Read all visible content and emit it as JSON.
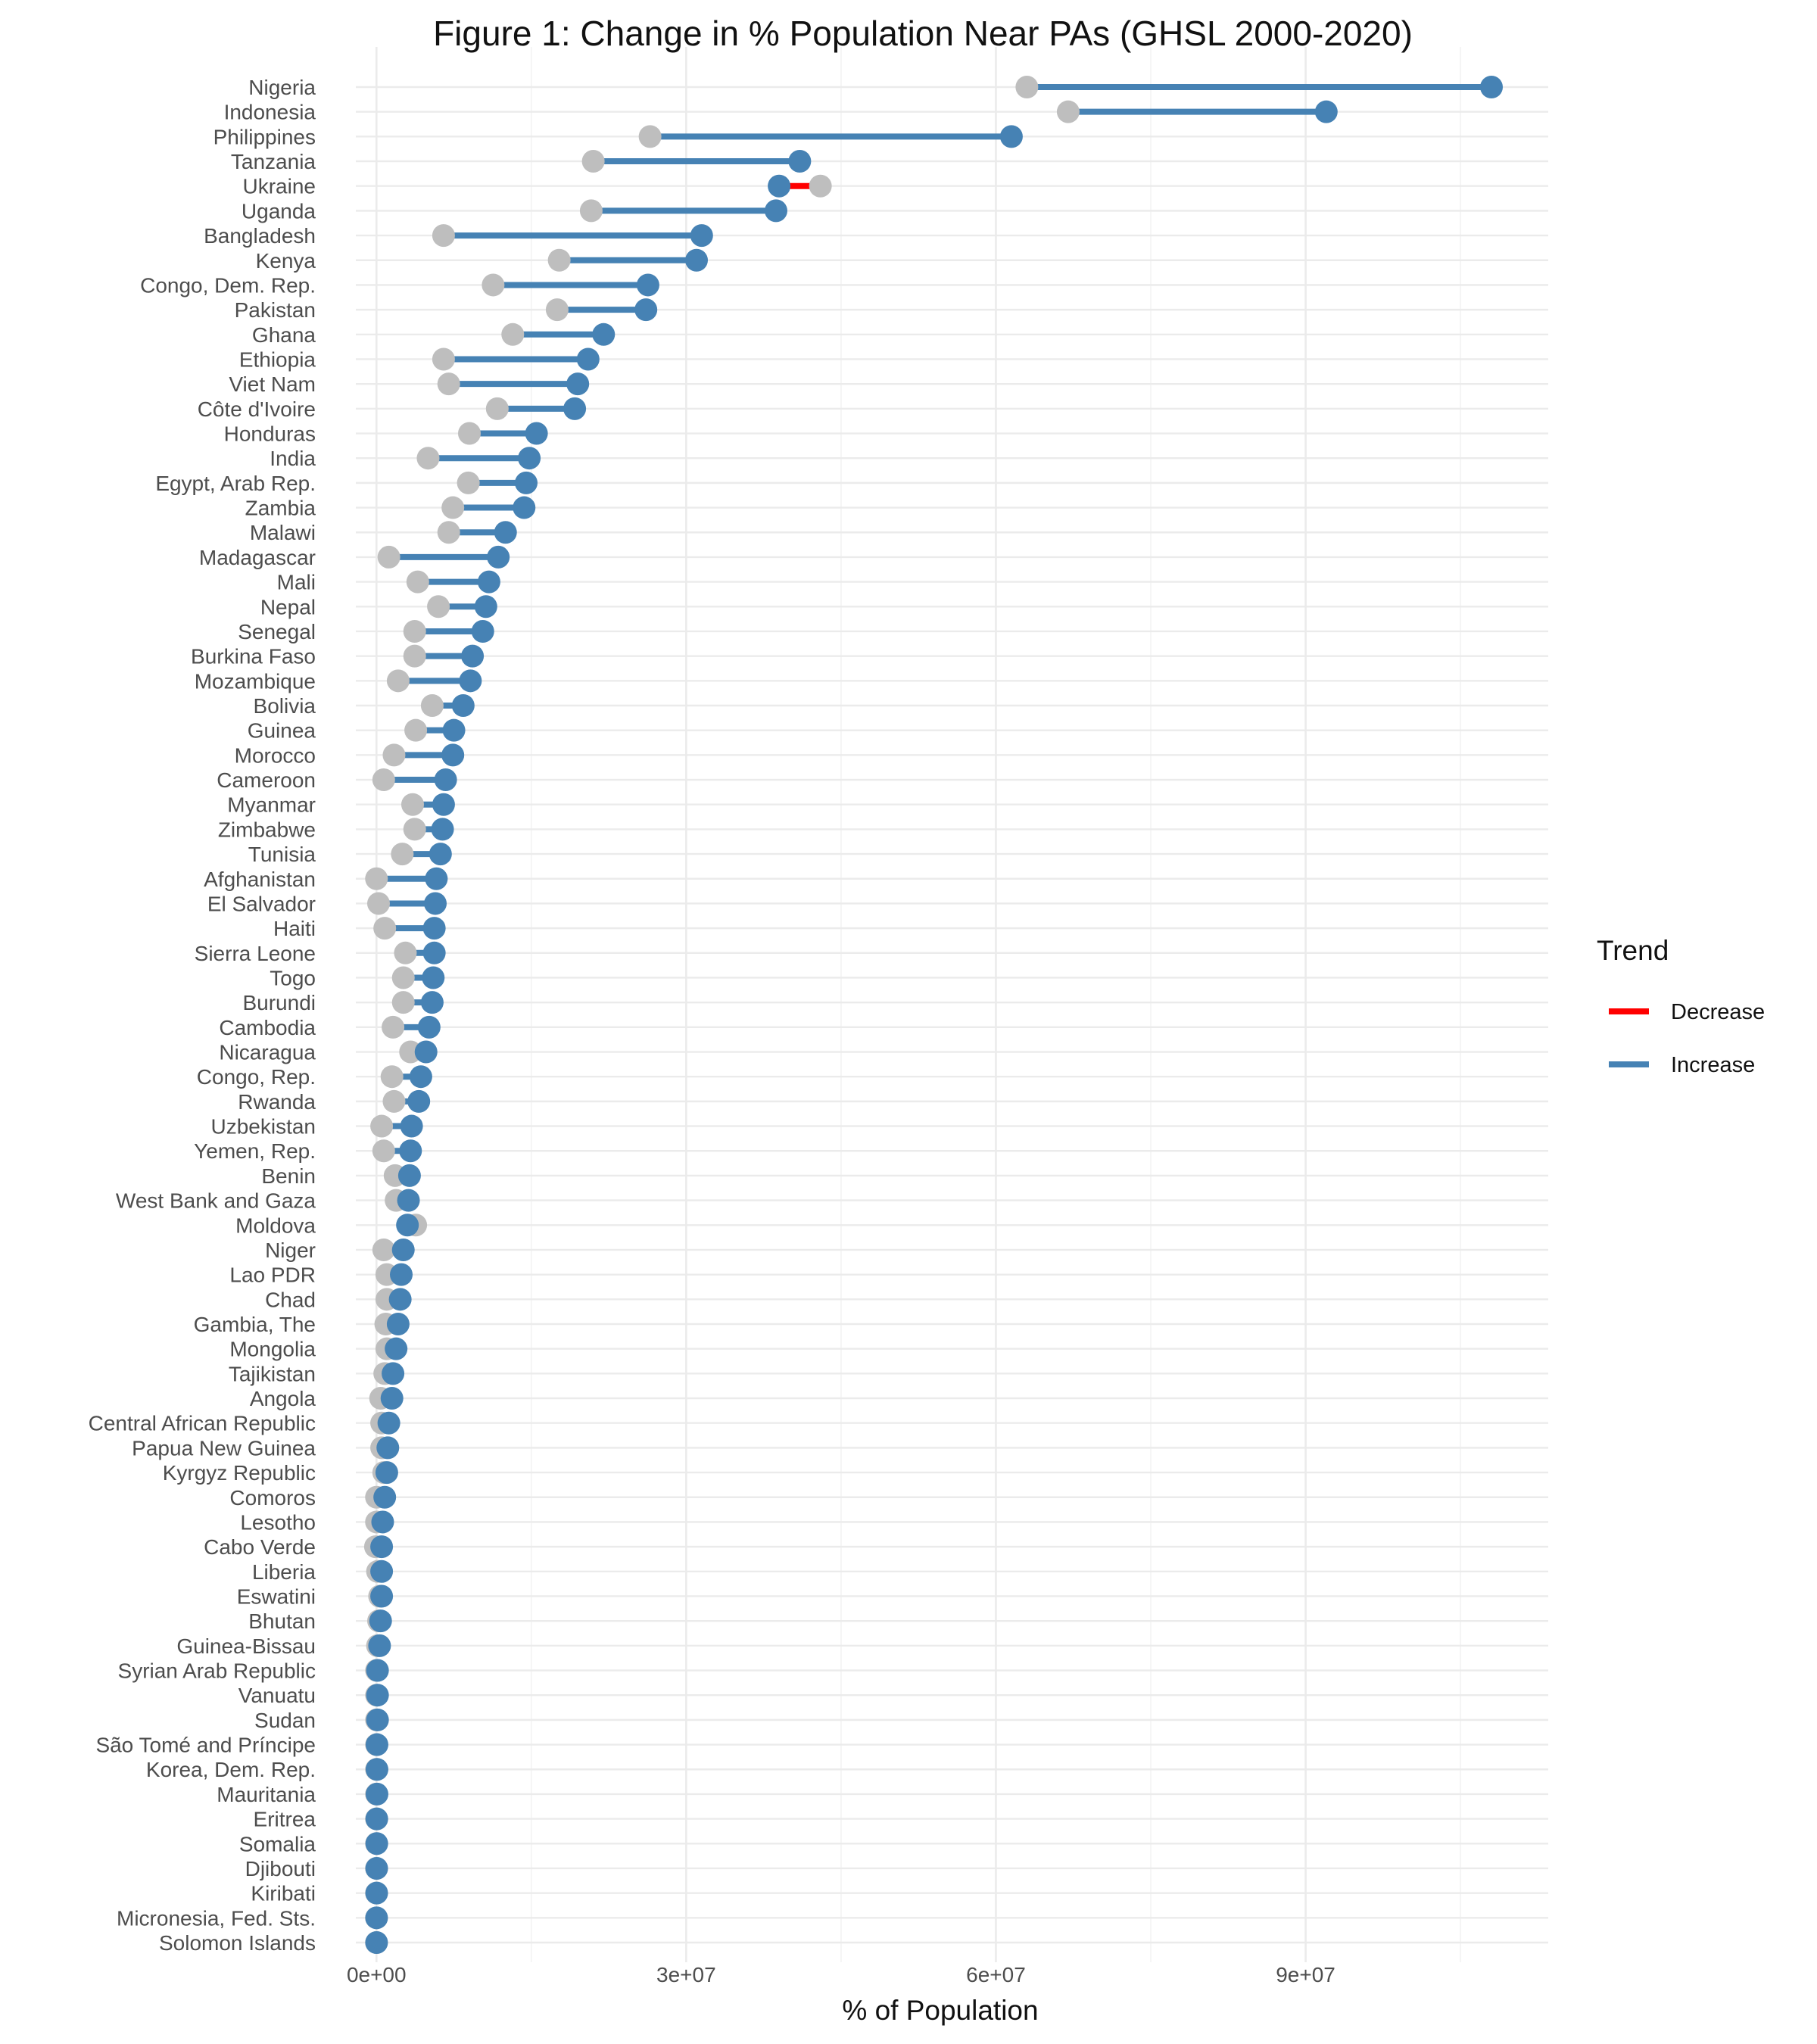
{
  "chart_data": {
    "type": "dumbbell",
    "title": "Figure 1: Change in % Population Near PAs (GHSL 2000-2020)",
    "xlabel": "% of Population",
    "ylabel": "",
    "xlim": [
      -2000000,
      113500000
    ],
    "xticks": [
      0,
      30000000,
      60000000,
      90000000
    ],
    "xtick_labels": [
      "0e+00",
      "3e+07",
      "6e+07",
      "9e+07"
    ],
    "grid": true,
    "legend": {
      "title": "Trend",
      "position": "right",
      "entries": [
        {
          "label": "Decrease",
          "color": "#ff0000"
        },
        {
          "label": "Increase",
          "color": "#4682b4"
        }
      ]
    },
    "colors": {
      "start_point": "#bebebe",
      "end_point": "#4682b4",
      "increase": "#4682b4",
      "decrease": "#ff0000"
    },
    "series": [
      {
        "name": "2000",
        "role": "start"
      },
      {
        "name": "2020",
        "role": "end"
      }
    ],
    "countries": [
      {
        "name": "Nigeria",
        "start": 63000000,
        "end": 108000000
      },
      {
        "name": "Indonesia",
        "start": 67000000,
        "end": 92000000
      },
      {
        "name": "Philippines",
        "start": 26500000,
        "end": 61500000
      },
      {
        "name": "Tanzania",
        "start": 21000000,
        "end": 41000000
      },
      {
        "name": "Ukraine",
        "start": 43000000,
        "end": 39000000
      },
      {
        "name": "Uganda",
        "start": 20800000,
        "end": 38700000
      },
      {
        "name": "Bangladesh",
        "start": 6500000,
        "end": 31500000
      },
      {
        "name": "Kenya",
        "start": 17700000,
        "end": 31000000
      },
      {
        "name": "Congo, Dem. Rep.",
        "start": 11300000,
        "end": 26300000
      },
      {
        "name": "Pakistan",
        "start": 17500000,
        "end": 26100000
      },
      {
        "name": "Ghana",
        "start": 13200000,
        "end": 22000000
      },
      {
        "name": "Ethiopia",
        "start": 6500000,
        "end": 20500000
      },
      {
        "name": "Viet Nam",
        "start": 7000000,
        "end": 19500000
      },
      {
        "name": "Côte d'Ivoire",
        "start": 11700000,
        "end": 19200000
      },
      {
        "name": "Honduras",
        "start": 9000000,
        "end": 15500000
      },
      {
        "name": "India",
        "start": 5000000,
        "end": 14800000
      },
      {
        "name": "Egypt, Arab Rep.",
        "start": 8900000,
        "end": 14500000
      },
      {
        "name": "Zambia",
        "start": 7400000,
        "end": 14300000
      },
      {
        "name": "Malawi",
        "start": 7000000,
        "end": 12500000
      },
      {
        "name": "Madagascar",
        "start": 1200000,
        "end": 11800000
      },
      {
        "name": "Mali",
        "start": 4000000,
        "end": 10900000
      },
      {
        "name": "Nepal",
        "start": 6000000,
        "end": 10600000
      },
      {
        "name": "Senegal",
        "start": 3700000,
        "end": 10300000
      },
      {
        "name": "Burkina Faso",
        "start": 3700000,
        "end": 9300000
      },
      {
        "name": "Mozambique",
        "start": 2100000,
        "end": 9100000
      },
      {
        "name": "Bolivia",
        "start": 5400000,
        "end": 8400000
      },
      {
        "name": "Guinea",
        "start": 3800000,
        "end": 7500000
      },
      {
        "name": "Morocco",
        "start": 1700000,
        "end": 7400000
      },
      {
        "name": "Cameroon",
        "start": 700000,
        "end": 6700000
      },
      {
        "name": "Myanmar",
        "start": 3500000,
        "end": 6500000
      },
      {
        "name": "Zimbabwe",
        "start": 3700000,
        "end": 6400000
      },
      {
        "name": "Tunisia",
        "start": 2500000,
        "end": 6200000
      },
      {
        "name": "Afghanistan",
        "start": 0,
        "end": 5800000
      },
      {
        "name": "El Salvador",
        "start": 200000,
        "end": 5700000
      },
      {
        "name": "Haiti",
        "start": 800000,
        "end": 5600000
      },
      {
        "name": "Sierra Leone",
        "start": 2800000,
        "end": 5600000
      },
      {
        "name": "Togo",
        "start": 2600000,
        "end": 5500000
      },
      {
        "name": "Burundi",
        "start": 2600000,
        "end": 5400000
      },
      {
        "name": "Cambodia",
        "start": 1600000,
        "end": 5100000
      },
      {
        "name": "Nicaragua",
        "start": 3300000,
        "end": 4800000
      },
      {
        "name": "Congo, Rep.",
        "start": 1500000,
        "end": 4300000
      },
      {
        "name": "Rwanda",
        "start": 1700000,
        "end": 4100000
      },
      {
        "name": "Uzbekistan",
        "start": 500000,
        "end": 3400000
      },
      {
        "name": "Yemen, Rep.",
        "start": 700000,
        "end": 3300000
      },
      {
        "name": "Benin",
        "start": 1800000,
        "end": 3200000
      },
      {
        "name": "West Bank and Gaza",
        "start": 1900000,
        "end": 3100000
      },
      {
        "name": "Moldova",
        "start": 3800000,
        "end": 3000000
      },
      {
        "name": "Niger",
        "start": 700000,
        "end": 2600000
      },
      {
        "name": "Lao PDR",
        "start": 1000000,
        "end": 2400000
      },
      {
        "name": "Chad",
        "start": 1000000,
        "end": 2300000
      },
      {
        "name": "Gambia, The",
        "start": 900000,
        "end": 2100000
      },
      {
        "name": "Mongolia",
        "start": 1000000,
        "end": 1900000
      },
      {
        "name": "Tajikistan",
        "start": 800000,
        "end": 1600000
      },
      {
        "name": "Angola",
        "start": 400000,
        "end": 1500000
      },
      {
        "name": "Central African Republic",
        "start": 500000,
        "end": 1200000
      },
      {
        "name": "Papua New Guinea",
        "start": 500000,
        "end": 1100000
      },
      {
        "name": "Kyrgyz Republic",
        "start": 700000,
        "end": 1000000
      },
      {
        "name": "Comoros",
        "start": 0,
        "end": 800000
      },
      {
        "name": "Lesotho",
        "start": 0,
        "end": 600000
      },
      {
        "name": "Cabo Verde",
        "start": -100000,
        "end": 500000
      },
      {
        "name": "Liberia",
        "start": 100000,
        "end": 500000
      },
      {
        "name": "Eswatini",
        "start": 300000,
        "end": 500000
      },
      {
        "name": "Bhutan",
        "start": 200000,
        "end": 400000
      },
      {
        "name": "Guinea-Bissau",
        "start": 100000,
        "end": 300000
      },
      {
        "name": "Syrian Arab Republic",
        "start": 0,
        "end": 100000
      },
      {
        "name": "Vanuatu",
        "start": 0,
        "end": 100000
      },
      {
        "name": "Sudan",
        "start": 0,
        "end": 100000
      },
      {
        "name": "São Tomé and Príncipe",
        "start": 0,
        "end": 50000
      },
      {
        "name": "Korea, Dem. Rep.",
        "start": 0,
        "end": 50000
      },
      {
        "name": "Mauritania",
        "start": 0,
        "end": 50000
      },
      {
        "name": "Eritrea",
        "start": 0,
        "end": 30000
      },
      {
        "name": "Somalia",
        "start": 0,
        "end": 30000
      },
      {
        "name": "Djibouti",
        "start": 0,
        "end": 20000
      },
      {
        "name": "Kiribati",
        "start": 0,
        "end": 20000
      },
      {
        "name": "Micronesia, Fed. Sts.",
        "start": 0,
        "end": 10000
      },
      {
        "name": "Solomon Islands",
        "start": 0,
        "end": 10000
      }
    ]
  }
}
